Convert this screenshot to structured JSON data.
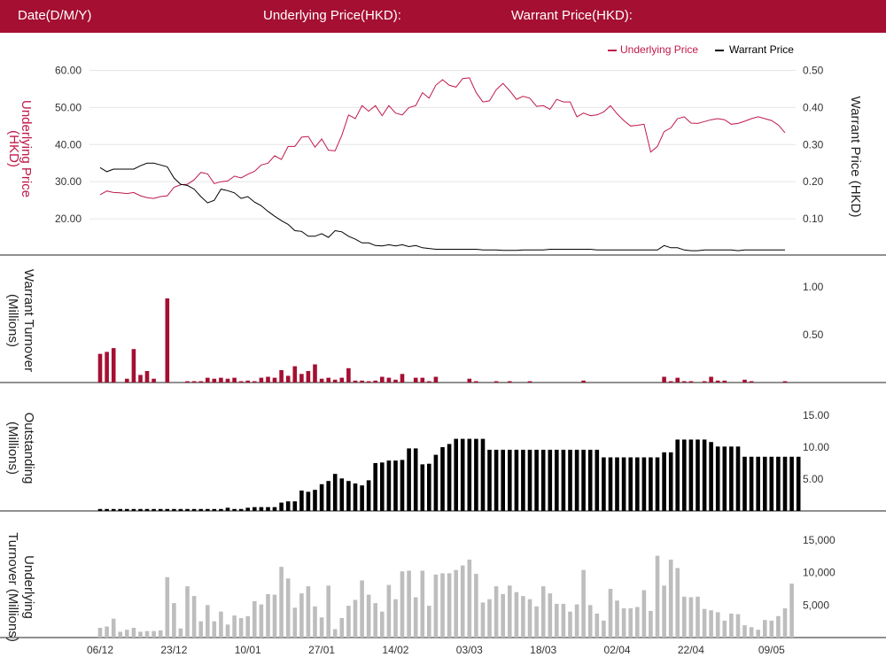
{
  "header": {
    "date_label": "Date(D/M/Y)",
    "underlying_label": "Underlying Price(HKD):",
    "warrant_label": "Warrant Price(HKD):"
  },
  "colors": {
    "brand": "#a50f32",
    "underlying": "#c0184a",
    "warrant": "#000000",
    "turnover_bar": "#a50f32",
    "outstanding_bar": "#000000",
    "underlying_turnover_bar": "#bdbdbd"
  },
  "chart_data": [
    {
      "type": "line",
      "panel": "price",
      "legend": [
        "Underlying Price",
        "Warrant Price"
      ],
      "legend_position": "top-right",
      "ylabel_left": [
        "Underlying Price",
        "(HKD)"
      ],
      "ylabel_right": [
        "Warrant  Price (HKD)"
      ],
      "yticks_left": [
        "60.00",
        "50.00",
        "40.00",
        "30.00",
        "20.00"
      ],
      "yticks_right": [
        "0.50",
        "0.40",
        "0.30",
        "0.20",
        "0.10"
      ],
      "ylim_left": [
        10,
        60
      ],
      "ylim_right": [
        0,
        0.5
      ],
      "grid": true,
      "series": [
        {
          "name": "Underlying Price",
          "axis": "left",
          "values": [
            26.5,
            27.5,
            27.1,
            27.0,
            26.8,
            27.1,
            26.2,
            25.7,
            25.5,
            26.0,
            26.2,
            28.5,
            29.2,
            29.3,
            30.5,
            32.5,
            32.1,
            29.5,
            30.0,
            30.2,
            31.5,
            31.0,
            32.0,
            32.8,
            34.5,
            35.0,
            37.0,
            36.0,
            39.5,
            39.5,
            42.0,
            42.2,
            39.3,
            41.5,
            38.5,
            38.3,
            42.5,
            48.0,
            47.0,
            50.5,
            49.0,
            50.5,
            47.8,
            50.5,
            48.5,
            48.0,
            50.0,
            50.5,
            54.0,
            52.5,
            56.0,
            57.5,
            56.0,
            55.5,
            57.8,
            58.0,
            54.0,
            51.5,
            51.8,
            54.8,
            56.5,
            54.5,
            52.2,
            53.0,
            52.5,
            50.3,
            50.5,
            49.5,
            52.2,
            51.5,
            51.5,
            47.5,
            48.5,
            47.8,
            48.0,
            48.8,
            50.5,
            48.3,
            46.5,
            45.0,
            45.2,
            45.5,
            38.0,
            39.5,
            43.5,
            44.5,
            47.0,
            47.5,
            45.8,
            45.7,
            46.2,
            46.7,
            47.0,
            46.7,
            45.5,
            45.7,
            46.3,
            47.0,
            47.5,
            47.0,
            46.5,
            45.3,
            43.2
          ]
        },
        {
          "name": "Warrant Price",
          "axis": "right",
          "values": [
            0.238,
            0.227,
            0.234,
            0.234,
            0.234,
            0.234,
            0.243,
            0.25,
            0.25,
            0.245,
            0.24,
            0.21,
            0.193,
            0.19,
            0.18,
            0.16,
            0.143,
            0.15,
            0.18,
            0.176,
            0.17,
            0.155,
            0.16,
            0.145,
            0.135,
            0.12,
            0.107,
            0.095,
            0.085,
            0.068,
            0.066,
            0.053,
            0.053,
            0.06,
            0.05,
            0.068,
            0.065,
            0.053,
            0.045,
            0.035,
            0.035,
            0.028,
            0.027,
            0.03,
            0.027,
            0.03,
            0.025,
            0.028,
            0.022,
            0.02,
            0.018,
            0.018,
            0.018,
            0.018,
            0.018,
            0.018,
            0.018,
            0.016,
            0.016,
            0.016,
            0.015,
            0.015,
            0.015,
            0.016,
            0.016,
            0.016,
            0.016,
            0.018,
            0.018,
            0.018,
            0.018,
            0.018,
            0.018,
            0.018,
            0.016,
            0.016,
            0.016,
            0.016,
            0.016,
            0.016,
            0.016,
            0.016,
            0.016,
            0.016,
            0.028,
            0.022,
            0.022,
            0.016,
            0.014,
            0.014,
            0.016,
            0.016,
            0.016,
            0.016,
            0.016,
            0.014,
            0.016,
            0.016,
            0.016,
            0.016,
            0.016,
            0.016,
            0.016
          ]
        }
      ]
    },
    {
      "type": "bar",
      "panel": "warrant_turnover",
      "ylabel": [
        "Warrant  Turnover",
        "(Millions)"
      ],
      "yticks": [
        "1.00",
        "0.50"
      ],
      "ylim": [
        0,
        1.2
      ],
      "values": [
        0.3,
        0.32,
        0.36,
        0,
        0.04,
        0.35,
        0.08,
        0.12,
        0.04,
        0,
        0.88,
        0,
        0,
        0.01,
        0.01,
        0.01,
        0.05,
        0.04,
        0.05,
        0.04,
        0.05,
        0.01,
        0.02,
        0.01,
        0.05,
        0.06,
        0.05,
        0.13,
        0.07,
        0.17,
        0.09,
        0.12,
        0.19,
        0.04,
        0.05,
        0.03,
        0.05,
        0.15,
        0.02,
        0.02,
        0.01,
        0.02,
        0.06,
        0.05,
        0.03,
        0.09,
        0,
        0.05,
        0.05,
        0.01,
        0.06,
        0,
        0,
        0,
        0,
        0.04,
        0.01,
        0,
        0,
        0.01,
        0,
        0.01,
        0,
        0,
        0.01,
        0,
        0,
        0,
        0,
        0,
        0,
        0,
        0.02,
        0,
        0,
        0,
        0,
        0,
        0,
        0,
        0,
        0,
        0,
        0,
        0.06,
        0.01,
        0.05,
        0.01,
        0.01,
        0,
        0.01,
        0.06,
        0.02,
        0.02,
        0,
        0,
        0.03,
        0.01,
        0,
        0,
        0,
        0,
        0.01
      ]
    },
    {
      "type": "bar",
      "panel": "outstanding",
      "ylabel": [
        "Outstanding",
        "(Millions)"
      ],
      "yticks": [
        "15.00",
        "10.00",
        "5.00"
      ],
      "ylim": [
        0,
        17
      ],
      "values": [
        0.3,
        0.3,
        0.3,
        0.3,
        0.3,
        0.3,
        0.3,
        0.3,
        0.3,
        0.3,
        0.3,
        0.3,
        0.3,
        0.3,
        0.3,
        0.3,
        0.3,
        0.3,
        0.3,
        0.5,
        0.3,
        0.3,
        0.5,
        0.6,
        0.6,
        0.6,
        0.6,
        1.3,
        1.5,
        1.5,
        3.2,
        3.0,
        3.3,
        4.2,
        4.7,
        5.8,
        5.1,
        4.7,
        4.3,
        4.0,
        4.8,
        7.5,
        7.6,
        7.9,
        7.9,
        8.0,
        9.8,
        9.8,
        7.3,
        7.4,
        8.8,
        10.0,
        10.5,
        11.3,
        11.3,
        11.3,
        11.3,
        11.3,
        9.6,
        9.6,
        9.6,
        9.6,
        9.6,
        9.6,
        9.6,
        9.6,
        9.6,
        9.6,
        9.6,
        9.6,
        9.6,
        9.6,
        9.6,
        9.6,
        9.6,
        8.4,
        8.4,
        8.4,
        8.4,
        8.4,
        8.4,
        8.4,
        8.4,
        8.4,
        9.2,
        9.2,
        11.2,
        11.2,
        11.2,
        11.2,
        11.2,
        10.8,
        10.1,
        10.1,
        10.1,
        10.1,
        8.5,
        8.5,
        8.5,
        8.5,
        8.5,
        8.5,
        8.5,
        8.5,
        8.5
      ]
    },
    {
      "type": "bar",
      "panel": "underlying_turnover",
      "ylabel": [
        "Underlying",
        "Turnover (Millions)"
      ],
      "yticks": [
        "15,000",
        "10,000",
        "5,000"
      ],
      "ylim": [
        0,
        16500
      ],
      "values": [
        1500,
        1700,
        2900,
        900,
        1200,
        1500,
        900,
        1000,
        1000,
        1100,
        9300,
        5300,
        1400,
        7900,
        6400,
        2500,
        5000,
        2500,
        4000,
        2000,
        3400,
        3000,
        3300,
        5600,
        5100,
        6700,
        6600,
        10900,
        9100,
        4600,
        6800,
        7900,
        4800,
        3100,
        8000,
        1300,
        3000,
        4900,
        5800,
        8800,
        6600,
        5300,
        4000,
        8100,
        5900,
        10200,
        10300,
        6200,
        10300,
        4900,
        9700,
        9900,
        9900,
        10400,
        11100,
        12000,
        9800,
        5400,
        5900,
        7900,
        6700,
        8000,
        7000,
        6400,
        5900,
        4800,
        7900,
        6800,
        5200,
        5200,
        4000,
        5100,
        10400,
        5000,
        3700,
        2600,
        7500,
        5700,
        4500,
        4500,
        4700,
        7300,
        4100,
        12600,
        8000,
        12000,
        10700,
        6300,
        6200,
        6300,
        4400,
        4200,
        3900,
        2600,
        3700,
        3600,
        1900,
        1600,
        1200,
        2700,
        2600,
        3300,
        4500,
        8300
      ]
    }
  ],
  "x_axis": {
    "tick_labels": [
      "06/12",
      "23/12",
      "10/01",
      "27/01",
      "14/02",
      "03/03",
      "18/03",
      "02/04",
      "22/04",
      "09/05"
    ],
    "tick_indices": [
      0,
      11,
      22,
      33,
      44,
      55,
      66,
      77,
      88,
      100
    ]
  }
}
